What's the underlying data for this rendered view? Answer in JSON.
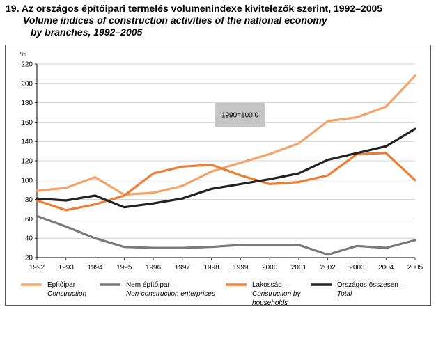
{
  "title": {
    "hungarian": "19. Az országos építőipari termelés volumenindexe kivitelezők szerint, 1992–2005",
    "english_line1": "Volume indices of construction activities of the national economy",
    "english_line2": "by branches, 1992–2005"
  },
  "chart_data": {
    "type": "line",
    "ylabel": "%",
    "ylim": [
      20,
      220
    ],
    "yticks": [
      20,
      40,
      60,
      80,
      100,
      120,
      140,
      160,
      180,
      200,
      220
    ],
    "x": [
      "1992",
      "1993",
      "1994",
      "1995",
      "1996",
      "1997",
      "1998",
      "1999",
      "2000",
      "2001",
      "2002",
      "2003",
      "2004",
      "2005"
    ],
    "annotation": "1990=100,0",
    "grid": true,
    "legend_position": "bottom",
    "series": [
      {
        "key": "epitoipar",
        "name_hu": "Építőipar –",
        "name_en": "Construction",
        "name_en2": "",
        "color": "#f4a46a",
        "values": [
          89,
          92,
          103,
          85,
          87,
          94,
          109,
          118,
          127,
          138,
          161,
          165,
          176,
          208
        ]
      },
      {
        "key": "nem_epitoipar",
        "name_hu": "Nem építőipar –",
        "name_en": "Non-construction enterprises",
        "name_en2": "",
        "color": "#7a7a7a",
        "values": [
          63,
          52,
          40,
          31,
          30,
          30,
          31,
          33,
          33,
          33,
          23,
          32,
          30,
          38
        ]
      },
      {
        "key": "lakossag",
        "name_hu": "Lakosság –",
        "name_en": "Construction by",
        "name_en2": "households",
        "color": "#ee7d33",
        "values": [
          79,
          69,
          75,
          84,
          107,
          114,
          116,
          105,
          96,
          98,
          105,
          127,
          128,
          100
        ]
      },
      {
        "key": "orszagos",
        "name_hu": "Országos összesen –",
        "name_en": "Total",
        "name_en2": "",
        "color": "#222222",
        "values": [
          81,
          79,
          84,
          72,
          76,
          81,
          91,
          96,
          101,
          107,
          121,
          128,
          135,
          153
        ]
      }
    ]
  }
}
